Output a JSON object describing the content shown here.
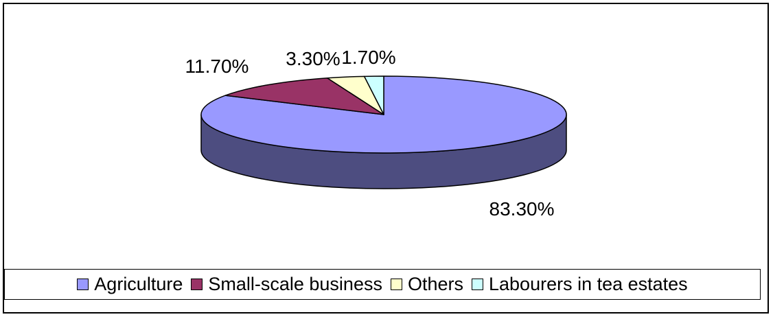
{
  "chart_data": {
    "type": "pie",
    "title": "",
    "categories": [
      "Agriculture",
      "Small-scale business",
      "Others",
      "Labourers in tea estates"
    ],
    "values": [
      83.3,
      11.7,
      3.3,
      1.7
    ],
    "data_labels": [
      "83.30%",
      "11.70%",
      "3.30%",
      "1.70%"
    ],
    "colors": [
      "#9999ff",
      "#993366",
      "#ffffcc",
      "#ccffff"
    ],
    "side_colors": [
      "#4d4d80",
      "#4d1a33",
      "#808066",
      "#668080"
    ],
    "style": "3d",
    "legend_position": "bottom"
  },
  "legend": {
    "items": [
      {
        "label": "Agriculture",
        "color": "#9999ff"
      },
      {
        "label": "Small-scale business",
        "color": "#993366"
      },
      {
        "label": "Others",
        "color": "#ffffcc"
      },
      {
        "label": "Labourers in tea estates",
        "color": "#ccffff"
      }
    ]
  }
}
